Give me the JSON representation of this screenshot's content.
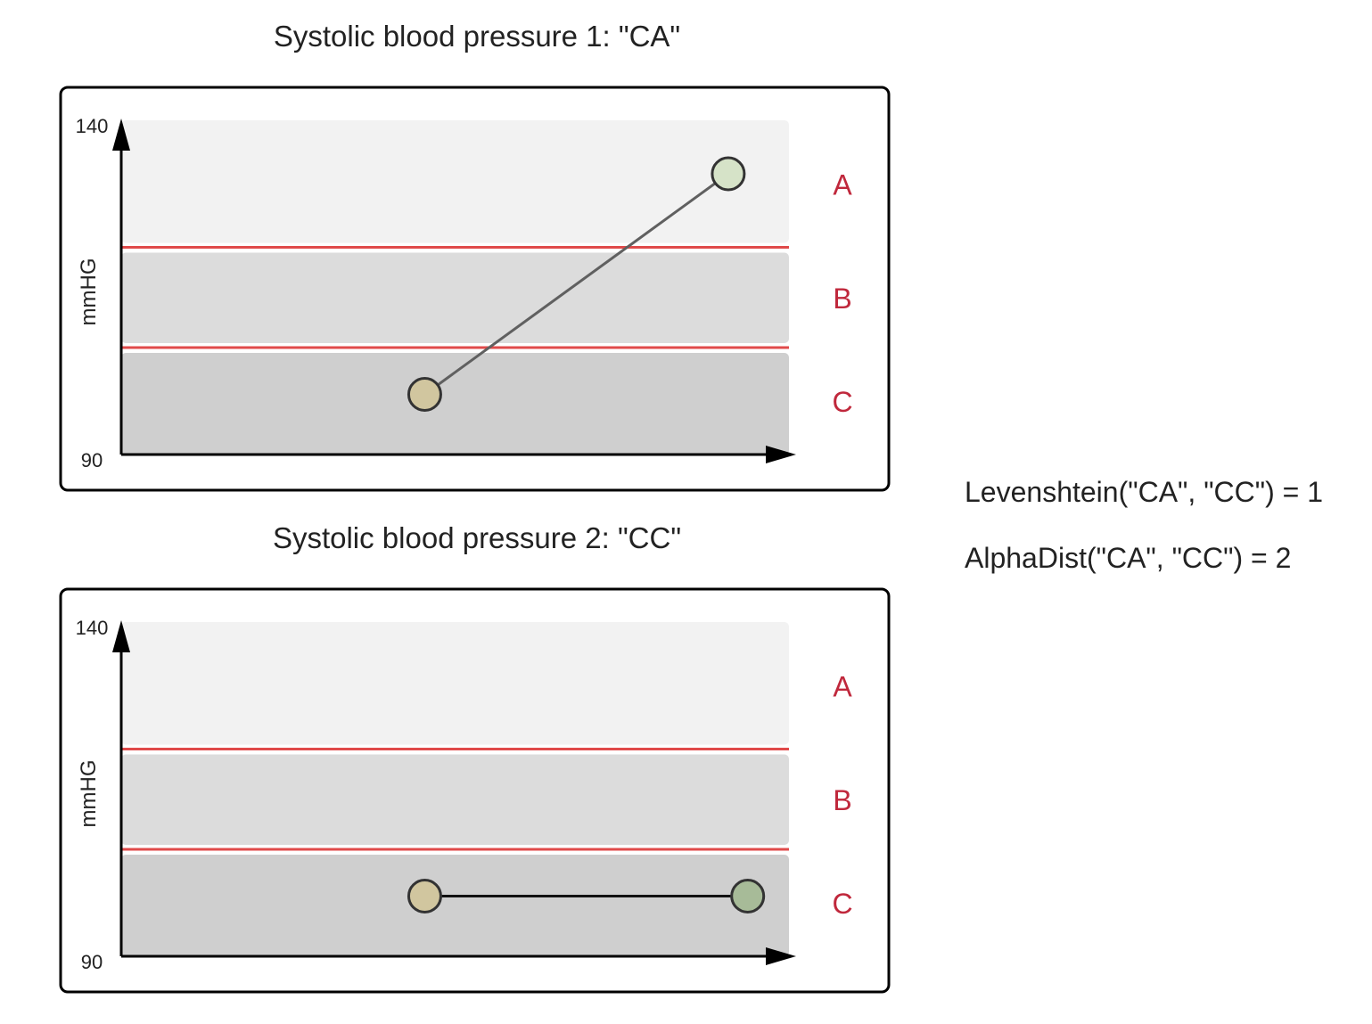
{
  "colors": {
    "band_a": "#f2f2f2",
    "band_b": "#dcdcdc",
    "band_c": "#cfcfcf",
    "threshold_line": "#e04a4a",
    "band_label": "#c0283c",
    "axis": "#000000",
    "start_point": "#d1c69f",
    "end_point_1": "#d6e3c8",
    "end_point_2": "#a7bb98",
    "trend_line_1": "#606060",
    "trend_line_2": "#111111"
  },
  "chart_data": [
    {
      "type": "line",
      "title": "Systolic blood pressure 1: \"CA\"",
      "ylabel": "mmHG",
      "xlabel": "",
      "ylim": [
        90,
        140
      ],
      "y_ticks": [
        "90",
        "140"
      ],
      "bands": [
        {
          "label": "A",
          "from": 121,
          "to": 140
        },
        {
          "label": "B",
          "from": 106,
          "to": 121
        },
        {
          "label": "C",
          "from": 90,
          "to": 106
        }
      ],
      "points": [
        {
          "x": 1,
          "y": 99,
          "band": "C"
        },
        {
          "x": 2,
          "y": 132,
          "band": "A"
        }
      ],
      "xlim": [
        0,
        2.2
      ]
    },
    {
      "type": "line",
      "title": "Systolic blood pressure 2: \"CC\"",
      "ylabel": "mmHG",
      "xlabel": "",
      "ylim": [
        90,
        140
      ],
      "y_ticks": [
        "90",
        "140"
      ],
      "bands": [
        {
          "label": "A",
          "from": 121,
          "to": 140
        },
        {
          "label": "B",
          "from": 106,
          "to": 121
        },
        {
          "label": "C",
          "from": 90,
          "to": 106
        }
      ],
      "points": [
        {
          "x": 1,
          "y": 99,
          "band": "C"
        },
        {
          "x": 2.064,
          "y": 99,
          "band": "C"
        }
      ],
      "xlim": [
        0,
        2.2
      ]
    }
  ],
  "info": {
    "levenshtein": "Levenshtein(\"CA\", \"CC\") = 1",
    "alphadist": "AlphaDist(\"CA\", \"CC\") = 2"
  }
}
